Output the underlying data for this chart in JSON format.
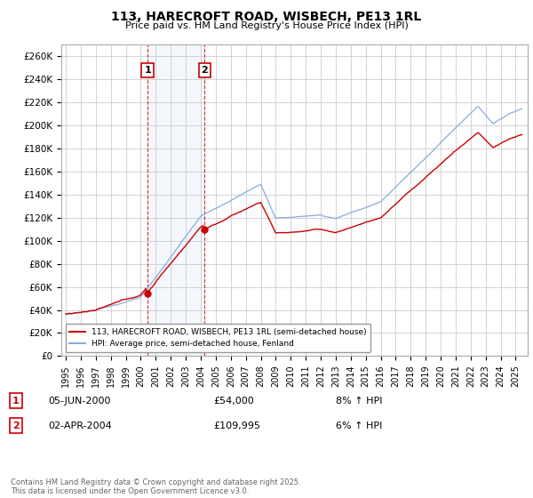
{
  "title": "113, HARECROFT ROAD, WISBECH, PE13 1RL",
  "subtitle": "Price paid vs. HM Land Registry's House Price Index (HPI)",
  "ylim": [
    0,
    270000
  ],
  "yticks": [
    0,
    20000,
    40000,
    60000,
    80000,
    100000,
    120000,
    140000,
    160000,
    180000,
    200000,
    220000,
    240000,
    260000
  ],
  "background_color": "#ffffff",
  "grid_color": "#cccccc",
  "hpi_color": "#88aadd",
  "price_color": "#cc0000",
  "sale1_year": 2000.45,
  "sale1_price": 54000,
  "sale2_year": 2004.25,
  "sale2_price": 109995,
  "sale1_label": "1",
  "sale2_label": "2",
  "legend_line1": "113, HARECROFT ROAD, WISBECH, PE13 1RL (semi-detached house)",
  "legend_line2": "HPI: Average price, semi-detached house, Fenland",
  "annotation1_date": "05-JUN-2000",
  "annotation1_price": "£54,000",
  "annotation1_hpi": "8% ↑ HPI",
  "annotation2_date": "02-APR-2004",
  "annotation2_price": "£109,995",
  "annotation2_hpi": "6% ↑ HPI",
  "footer": "Contains HM Land Registry data © Crown copyright and database right 2025.\nThis data is licensed under the Open Government Licence v3.0."
}
